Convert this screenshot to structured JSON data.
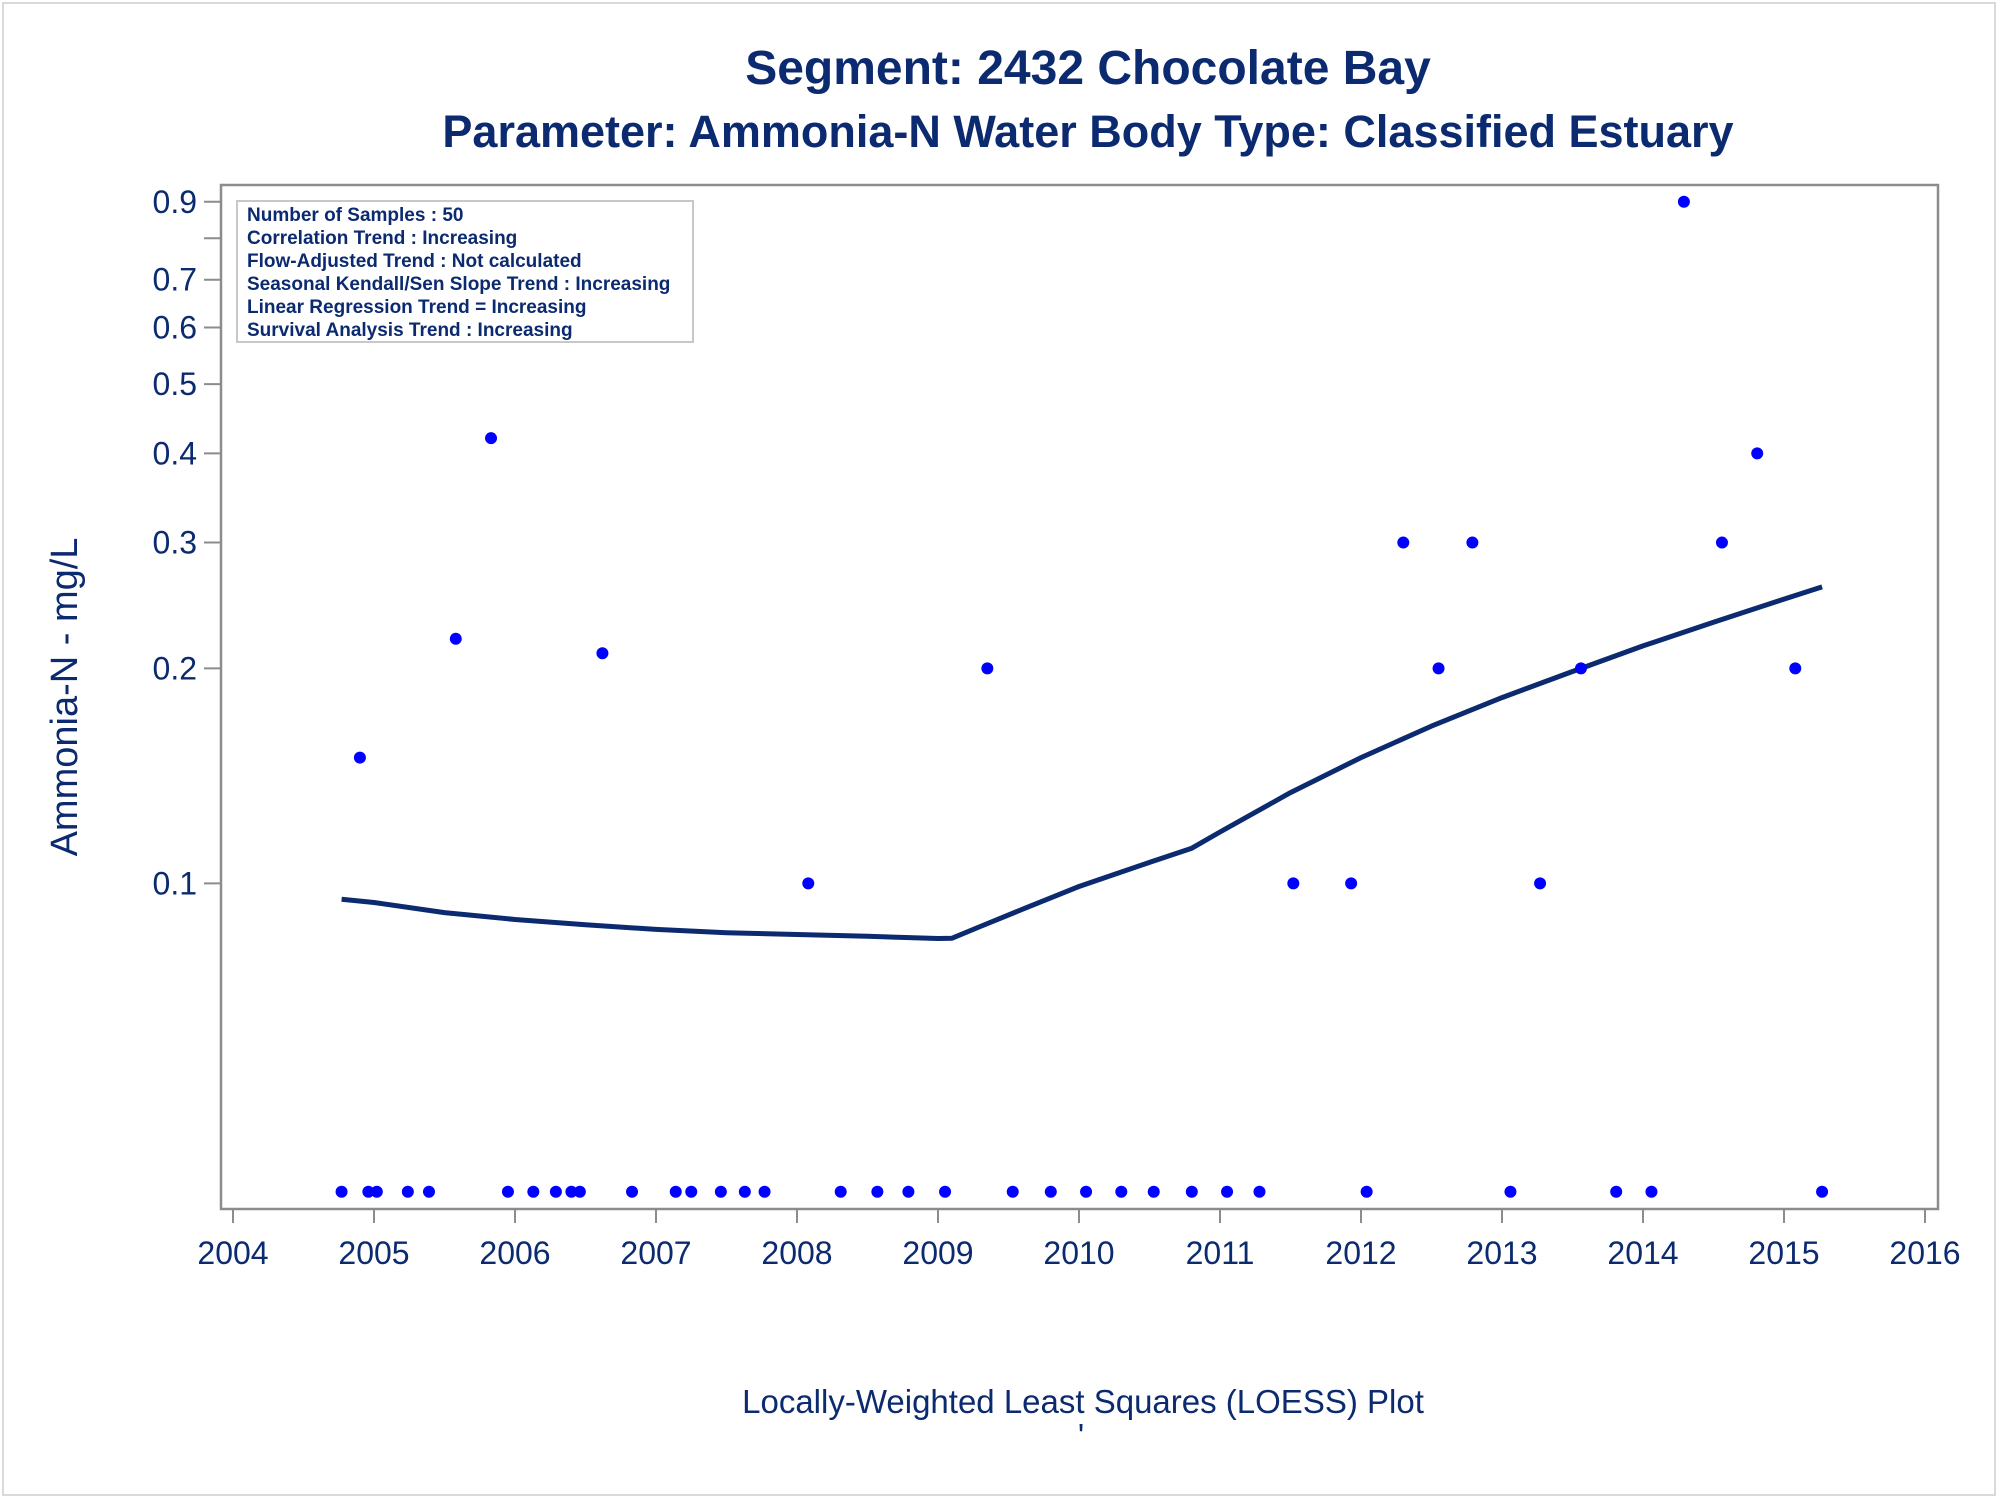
{
  "chart_data": {
    "type": "scatter",
    "title": "Segment: 2432  Chocolate Bay",
    "subtitle": "Parameter: Ammonia-N   Water Body Type: Classified Estuary",
    "ylabel": "Ammonia-N - mg/L",
    "footer": "Locally-Weighted Least Squares (LOESS) Plot",
    "footer_mark": "'",
    "yscale": "log",
    "xlim": [
      2004,
      2016
    ],
    "ylim": [
      0.035,
      0.95
    ],
    "x_ticks": [
      2004,
      2005,
      2006,
      2007,
      2008,
      2009,
      2010,
      2011,
      2012,
      2013,
      2014,
      2015,
      2016
    ],
    "y_ticks": [
      0.1,
      0.2,
      0.3,
      0.4,
      0.5,
      0.6,
      0.7,
      0.9
    ],
    "y_minor_ticks": [
      0.8
    ],
    "info_box": [
      "Number of Samples : 50",
      "Correlation Trend : Increasing",
      "Flow-Adjusted Trend : Not calculated",
      "Seasonal Kendall/Sen Slope Trend : Increasing",
      "Linear Regression Trend = Increasing",
      "Survival Analysis Trend : Increasing"
    ],
    "below_axis_value": 0.037,
    "series": [
      {
        "type": "scatter",
        "color": "#0000ff",
        "points": [
          {
            "x": 2004.9,
            "y": 0.15
          },
          {
            "x": 2005.58,
            "y": 0.22
          },
          {
            "x": 2005.83,
            "y": 0.42
          },
          {
            "x": 2006.62,
            "y": 0.21
          },
          {
            "x": 2008.08,
            "y": 0.1
          },
          {
            "x": 2009.35,
            "y": 0.2
          },
          {
            "x": 2011.52,
            "y": 0.1
          },
          {
            "x": 2011.93,
            "y": 0.1
          },
          {
            "x": 2012.3,
            "y": 0.3
          },
          {
            "x": 2012.55,
            "y": 0.2
          },
          {
            "x": 2012.79,
            "y": 0.3
          },
          {
            "x": 2013.27,
            "y": 0.1
          },
          {
            "x": 2013.56,
            "y": 0.2
          },
          {
            "x": 2014.29,
            "y": 0.9
          },
          {
            "x": 2014.56,
            "y": 0.3
          },
          {
            "x": 2014.81,
            "y": 0.4
          },
          {
            "x": 2015.08,
            "y": 0.2
          }
        ],
        "censored_x": [
          2004.77,
          2004.96,
          2005.02,
          2005.24,
          2005.39,
          2005.95,
          2006.13,
          2006.29,
          2006.4,
          2006.46,
          2006.83,
          2007.14,
          2007.25,
          2007.46,
          2007.63,
          2007.77,
          2008.31,
          2008.57,
          2008.79,
          2009.05,
          2009.53,
          2009.8,
          2010.05,
          2010.3,
          2010.53,
          2010.8,
          2011.05,
          2011.28,
          2012.04,
          2013.06,
          2013.81,
          2014.06,
          2015.27
        ]
      },
      {
        "type": "line",
        "color": "#0b2a6f",
        "points": [
          {
            "x": 2004.77,
            "y": 0.095
          },
          {
            "x": 2005.0,
            "y": 0.094
          },
          {
            "x": 2005.5,
            "y": 0.091
          },
          {
            "x": 2006.0,
            "y": 0.089
          },
          {
            "x": 2006.5,
            "y": 0.0875
          },
          {
            "x": 2007.0,
            "y": 0.0862
          },
          {
            "x": 2007.5,
            "y": 0.0853
          },
          {
            "x": 2008.0,
            "y": 0.0848
          },
          {
            "x": 2008.5,
            "y": 0.0843
          },
          {
            "x": 2009.0,
            "y": 0.0837
          },
          {
            "x": 2009.1,
            "y": 0.0838
          },
          {
            "x": 2009.3,
            "y": 0.087
          },
          {
            "x": 2009.6,
            "y": 0.092
          },
          {
            "x": 2010.0,
            "y": 0.099
          },
          {
            "x": 2010.5,
            "y": 0.107
          },
          {
            "x": 2010.8,
            "y": 0.112
          },
          {
            "x": 2011.0,
            "y": 0.118
          },
          {
            "x": 2011.5,
            "y": 0.134
          },
          {
            "x": 2012.0,
            "y": 0.15
          },
          {
            "x": 2012.5,
            "y": 0.166
          },
          {
            "x": 2013.0,
            "y": 0.182
          },
          {
            "x": 2013.5,
            "y": 0.198
          },
          {
            "x": 2014.0,
            "y": 0.215
          },
          {
            "x": 2014.5,
            "y": 0.232
          },
          {
            "x": 2015.0,
            "y": 0.25
          },
          {
            "x": 2015.27,
            "y": 0.26
          }
        ]
      }
    ]
  }
}
